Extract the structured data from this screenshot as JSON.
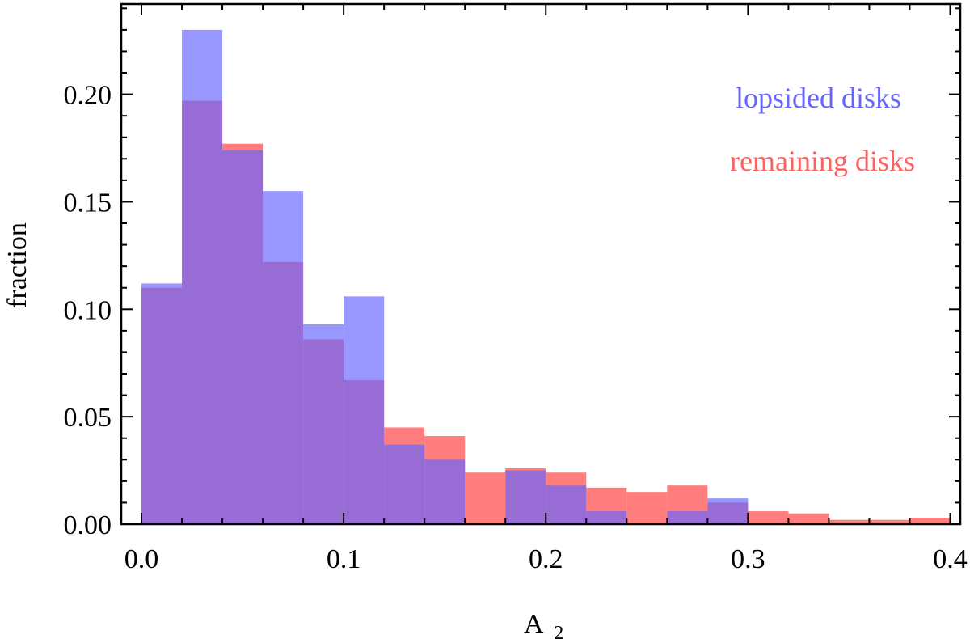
{
  "chart_data": {
    "type": "bar",
    "xlabel": "A",
    "xlabel_sub": "2",
    "ylabel": "fraction",
    "xlim": [
      -0.01,
      0.405
    ],
    "ylim": [
      0,
      0.242
    ],
    "xticks": [
      0.0,
      0.1,
      0.2,
      0.3,
      0.4
    ],
    "xtick_labels": [
      "0.0",
      "0.1",
      "0.2",
      "0.3",
      "0.4"
    ],
    "yticks": [
      0.0,
      0.05,
      0.1,
      0.15,
      0.2
    ],
    "ytick_labels": [
      "0.00",
      "0.05",
      "0.10",
      "0.15",
      "0.20"
    ],
    "bin_width": 0.02,
    "bin_edges": [
      0.0,
      0.02,
      0.04,
      0.06,
      0.08,
      0.1,
      0.12,
      0.14,
      0.16,
      0.18,
      0.2,
      0.22,
      0.24,
      0.26,
      0.28,
      0.3,
      0.32,
      0.34,
      0.36,
      0.38,
      0.4
    ],
    "series": [
      {
        "name": "lopsided disks",
        "color": "#6666ff",
        "values": [
          0.112,
          0.23,
          0.174,
          0.155,
          0.093,
          0.106,
          0.037,
          0.03,
          0.0,
          0.025,
          0.018,
          0.006,
          0.0,
          0.006,
          0.012,
          0.0,
          0.0,
          0.0,
          0.0,
          0.0
        ]
      },
      {
        "name": "remaining disks",
        "color": "#ff6060",
        "values": [
          0.11,
          0.197,
          0.177,
          0.122,
          0.086,
          0.067,
          0.045,
          0.041,
          0.024,
          0.026,
          0.024,
          0.017,
          0.015,
          0.018,
          0.01,
          0.006,
          0.005,
          0.002,
          0.002,
          0.003
        ]
      }
    ],
    "legend_position": "top-right",
    "grid": false
  }
}
